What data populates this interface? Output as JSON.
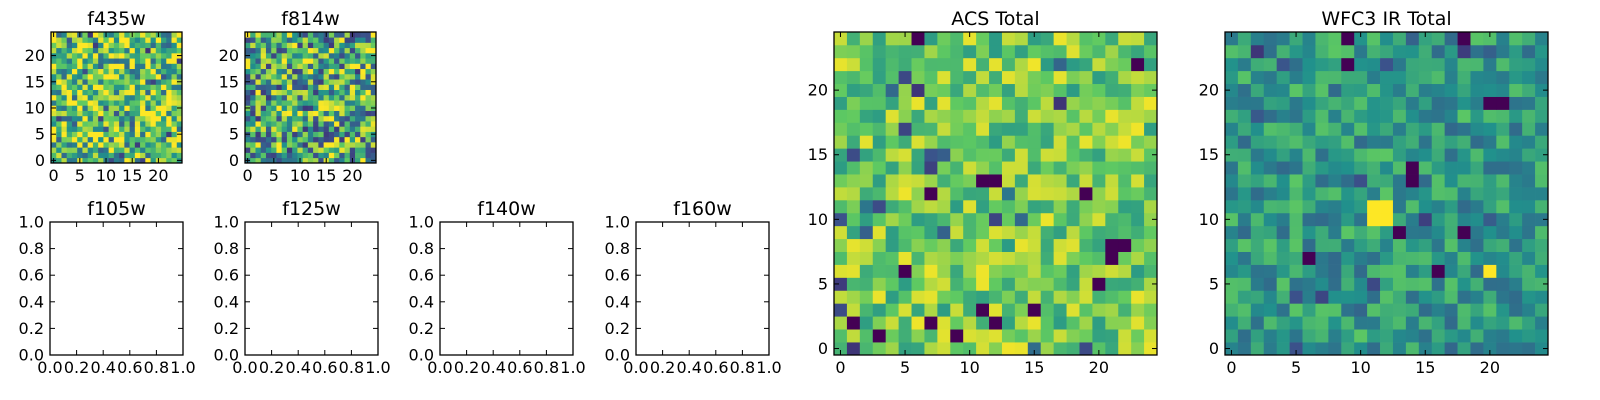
{
  "colormap": {
    "name": "viridis",
    "stops": [
      "#440154",
      "#3b528b",
      "#21918c",
      "#5ec962",
      "#fde725"
    ]
  },
  "chart_data": [
    {
      "type": "heatmap",
      "title": "f435w",
      "grid_size": [
        25,
        25
      ],
      "origin": "lower",
      "xlim": [
        -0.5,
        24.5
      ],
      "ylim": [
        -0.5,
        24.5
      ],
      "xticks": [
        0,
        5,
        10,
        15,
        20
      ],
      "yticks": [
        0,
        5,
        10,
        15,
        20
      ],
      "xtick_labels": [
        "0",
        "5",
        "10",
        "15",
        "20"
      ],
      "ytick_labels": [
        "0",
        "5",
        "10",
        "15",
        "20"
      ],
      "value_distribution": "mostly bright yellow-green with scattered dark pixels"
    },
    {
      "type": "heatmap",
      "title": "f814w",
      "grid_size": [
        25,
        25
      ],
      "origin": "lower",
      "xlim": [
        -0.5,
        24.5
      ],
      "ylim": [
        -0.5,
        24.5
      ],
      "xticks": [
        0,
        5,
        10,
        15,
        20
      ],
      "yticks": [
        0,
        5,
        10,
        15,
        20
      ],
      "xtick_labels": [
        "0",
        "5",
        "10",
        "15",
        "20"
      ],
      "ytick_labels": [
        "0",
        "5",
        "10",
        "15",
        "20"
      ],
      "value_distribution": "mixed green and yellow with scattered dark pixels"
    },
    {
      "type": "empty",
      "title": "f105w",
      "xlim": [
        0,
        1
      ],
      "ylim": [
        0,
        1
      ],
      "xticks": [
        0,
        0.2,
        0.4,
        0.6,
        0.8,
        1.0
      ],
      "yticks": [
        0,
        0.2,
        0.4,
        0.6,
        0.8,
        1.0
      ],
      "xtick_labels": [
        "0.0",
        "0.2",
        "0.4",
        "0.6",
        "0.8",
        "1.0"
      ],
      "ytick_labels": [
        "0.0",
        "0.2",
        "0.4",
        "0.6",
        "0.8",
        "1.0"
      ]
    },
    {
      "type": "empty",
      "title": "f125w",
      "xlim": [
        0,
        1
      ],
      "ylim": [
        0,
        1
      ],
      "xticks": [
        0,
        0.2,
        0.4,
        0.6,
        0.8,
        1.0
      ],
      "yticks": [
        0,
        0.2,
        0.4,
        0.6,
        0.8,
        1.0
      ],
      "xtick_labels": [
        "0.0",
        "0.2",
        "0.4",
        "0.6",
        "0.8",
        "1.0"
      ],
      "ytick_labels": [
        "0.0",
        "0.2",
        "0.4",
        "0.6",
        "0.8",
        "1.0"
      ]
    },
    {
      "type": "empty",
      "title": "f140w",
      "xlim": [
        0,
        1
      ],
      "ylim": [
        0,
        1
      ],
      "xticks": [
        0,
        0.2,
        0.4,
        0.6,
        0.8,
        1.0
      ],
      "yticks": [
        0,
        0.2,
        0.4,
        0.6,
        0.8,
        1.0
      ],
      "xtick_labels": [
        "0.0",
        "0.2",
        "0.4",
        "0.6",
        "0.8",
        "1.0"
      ],
      "ytick_labels": [
        "0.0",
        "0.2",
        "0.4",
        "0.6",
        "0.8",
        "1.0"
      ]
    },
    {
      "type": "empty",
      "title": "f160w",
      "xlim": [
        0,
        1
      ],
      "ylim": [
        0,
        1
      ],
      "xticks": [
        0,
        0.2,
        0.4,
        0.6,
        0.8,
        1.0
      ],
      "yticks": [
        0,
        0.2,
        0.4,
        0.6,
        0.8,
        1.0
      ],
      "xtick_labels": [
        "0.0",
        "0.2",
        "0.4",
        "0.6",
        "0.8",
        "1.0"
      ],
      "ytick_labels": [
        "0.0",
        "0.2",
        "0.4",
        "0.6",
        "0.8",
        "1.0"
      ]
    },
    {
      "type": "heatmap",
      "title": "ACS Total",
      "grid_size": [
        25,
        25
      ],
      "origin": "lower",
      "xlim": [
        -0.5,
        24.5
      ],
      "ylim": [
        -0.5,
        24.5
      ],
      "xticks": [
        0,
        5,
        10,
        15,
        20
      ],
      "yticks": [
        0,
        5,
        10,
        15,
        20
      ],
      "xtick_labels": [
        "0",
        "5",
        "10",
        "15",
        "20"
      ],
      "ytick_labels": [
        "0",
        "5",
        "10",
        "15",
        "20"
      ],
      "value_distribution": "mostly yellow-green with scattered dark pixels",
      "dark_pixels": [
        [
          11,
          13
        ],
        [
          12,
          13
        ],
        [
          7,
          12
        ],
        [
          21,
          8
        ],
        [
          22,
          8
        ],
        [
          21,
          7
        ],
        [
          5,
          6
        ],
        [
          20,
          5
        ],
        [
          11,
          3
        ],
        [
          7,
          2
        ],
        [
          1,
          2
        ],
        [
          12,
          2
        ],
        [
          3,
          1
        ],
        [
          9,
          1
        ],
        [
          6,
          24
        ],
        [
          23,
          22
        ],
        [
          15,
          3
        ],
        [
          19,
          12
        ]
      ]
    },
    {
      "type": "heatmap",
      "title": "WFC3 IR Total",
      "grid_size": [
        25,
        25
      ],
      "origin": "lower",
      "xlim": [
        -0.5,
        24.5
      ],
      "ylim": [
        -0.5,
        24.5
      ],
      "xticks": [
        0,
        5,
        10,
        15,
        20
      ],
      "yticks": [
        0,
        5,
        10,
        15,
        20
      ],
      "xtick_labels": [
        "0",
        "5",
        "10",
        "15",
        "20"
      ],
      "ytick_labels": [
        "0",
        "5",
        "10",
        "15",
        "20"
      ],
      "value_distribution": "mostly teal-green with a few dark and bright pixels",
      "dark_pixels": [
        [
          9,
          22
        ],
        [
          20,
          19
        ],
        [
          21,
          19
        ],
        [
          14,
          14
        ],
        [
          14,
          13
        ],
        [
          13,
          9
        ],
        [
          9,
          24
        ],
        [
          18,
          24
        ],
        [
          18,
          9
        ],
        [
          6,
          7
        ],
        [
          16,
          6
        ]
      ],
      "bright_pixels": [
        [
          11,
          11
        ],
        [
          12,
          11
        ],
        [
          11,
          10
        ],
        [
          12,
          10
        ],
        [
          20,
          6
        ]
      ]
    }
  ]
}
